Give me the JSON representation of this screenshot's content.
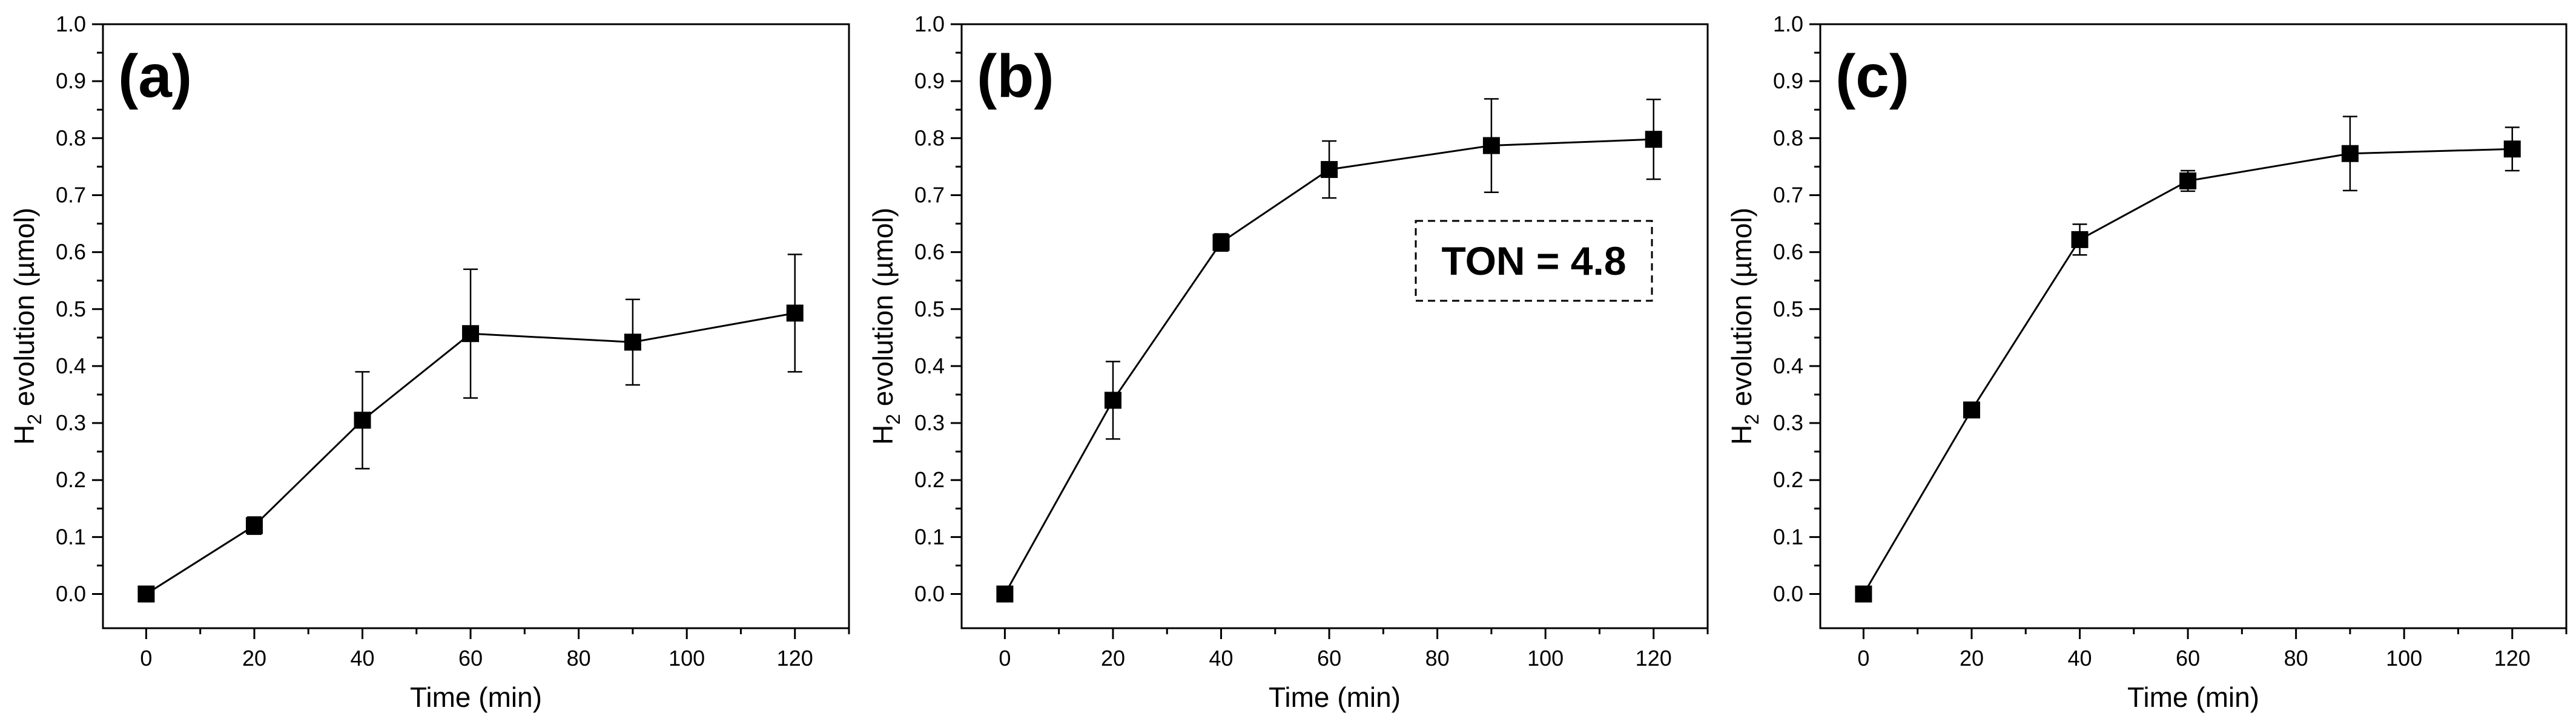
{
  "chart_data": [
    {
      "type": "line",
      "panel_label": "(a)",
      "xlabel": "Time (min)",
      "ylabel": "H2 evolution (µmol)",
      "ylabel_main": "H",
      "ylabel_sub": "2",
      "ylabel_rest": " evolution (µmol)",
      "xlim": [
        -8,
        130
      ],
      "ylim": [
        -0.06,
        1.0
      ],
      "x_ticks": [
        0,
        20,
        40,
        60,
        80,
        100,
        120
      ],
      "y_ticks": [
        0.0,
        0.1,
        0.2,
        0.3,
        0.4,
        0.5,
        0.6,
        0.7,
        0.8,
        0.9,
        1.0
      ],
      "x_tick_labels": [
        "0",
        "20",
        "40",
        "60",
        "80",
        "100",
        "120"
      ],
      "y_tick_labels": [
        "0.0",
        "0.1",
        "0.2",
        "0.3",
        "0.4",
        "0.5",
        "0.6",
        "0.7",
        "0.8",
        "0.9",
        "1.0"
      ],
      "series": [
        {
          "name": "H2 evolution",
          "x": [
            0,
            20,
            40,
            60,
            90,
            120
          ],
          "y": [
            0.0,
            0.12,
            0.305,
            0.457,
            0.442,
            0.493
          ],
          "err": [
            0.0,
            0.015,
            0.085,
            0.113,
            0.075,
            0.103
          ]
        }
      ]
    },
    {
      "type": "line",
      "panel_label": "(b)",
      "xlabel": "Time (min)",
      "ylabel": "H2 evolution (µmol)",
      "ylabel_main": "H",
      "ylabel_sub": "2",
      "ylabel_rest": " evolution (µmol)",
      "xlim": [
        -8,
        130
      ],
      "ylim": [
        -0.06,
        1.0
      ],
      "x_ticks": [
        0,
        20,
        40,
        60,
        80,
        100,
        120
      ],
      "y_ticks": [
        0.0,
        0.1,
        0.2,
        0.3,
        0.4,
        0.5,
        0.6,
        0.7,
        0.8,
        0.9,
        1.0
      ],
      "x_tick_labels": [
        "0",
        "20",
        "40",
        "60",
        "80",
        "100",
        "120"
      ],
      "y_tick_labels": [
        "0.0",
        "0.1",
        "0.2",
        "0.3",
        "0.4",
        "0.5",
        "0.6",
        "0.7",
        "0.8",
        "0.9",
        "1.0"
      ],
      "annotation": "TON = 4.8",
      "series": [
        {
          "name": "H2 evolution",
          "x": [
            0,
            20,
            40,
            60,
            90,
            120
          ],
          "y": [
            0.0,
            0.34,
            0.617,
            0.745,
            0.787,
            0.798
          ],
          "err": [
            0.0,
            0.068,
            0.015,
            0.05,
            0.082,
            0.07
          ]
        }
      ]
    },
    {
      "type": "line",
      "panel_label": "(c)",
      "xlabel": "Time (min)",
      "ylabel": "H2 evolution (µmol)",
      "ylabel_main": "H",
      "ylabel_sub": "2",
      "ylabel_rest": " evolution (µmol)",
      "xlim": [
        -8,
        130
      ],
      "ylim": [
        -0.06,
        1.0
      ],
      "x_ticks": [
        0,
        20,
        40,
        60,
        80,
        100,
        120
      ],
      "y_ticks": [
        0.0,
        0.1,
        0.2,
        0.3,
        0.4,
        0.5,
        0.6,
        0.7,
        0.8,
        0.9,
        1.0
      ],
      "x_tick_labels": [
        "0",
        "20",
        "40",
        "60",
        "80",
        "100",
        "120"
      ],
      "y_tick_labels": [
        "0.0",
        "0.1",
        "0.2",
        "0.3",
        "0.4",
        "0.5",
        "0.6",
        "0.7",
        "0.8",
        "0.9",
        "1.0"
      ],
      "series": [
        {
          "name": "H2 evolution",
          "x": [
            0,
            20,
            40,
            60,
            90,
            120
          ],
          "y": [
            0.0,
            0.323,
            0.622,
            0.725,
            0.773,
            0.781
          ],
          "err": [
            0.0,
            0.012,
            0.027,
            0.018,
            0.065,
            0.038
          ]
        }
      ]
    }
  ]
}
